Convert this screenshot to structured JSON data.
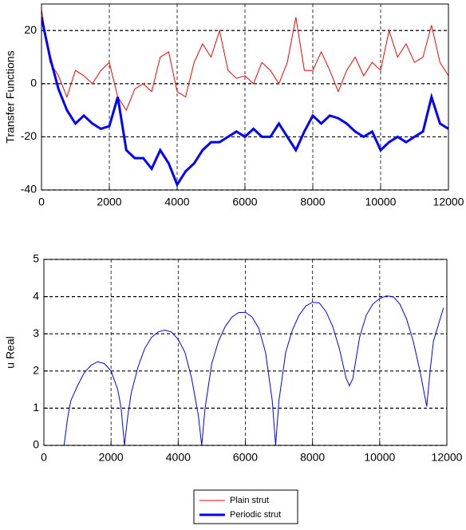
{
  "chart_data": [
    {
      "type": "line",
      "ylabel": "Transfer Functions",
      "x": [
        0,
        250,
        500,
        750,
        1000,
        1250,
        1500,
        1750,
        2000,
        2250,
        2500,
        2750,
        3000,
        3250,
        3500,
        3750,
        4000,
        4250,
        4500,
        4750,
        5000,
        5250,
        5500,
        5750,
        6000,
        6250,
        6500,
        6750,
        7000,
        7250,
        7500,
        7750,
        8000,
        8250,
        8500,
        8750,
        9000,
        9250,
        9500,
        9750,
        10000,
        10250,
        10500,
        10750,
        11000,
        11250,
        11500,
        11750,
        12000
      ],
      "series": [
        {
          "name": "Plain strut",
          "color": "#ff0000",
          "values": [
            28,
            8,
            3,
            -5,
            5,
            3,
            0,
            5,
            8,
            -5,
            -10,
            -2,
            0,
            -3,
            10,
            12,
            -3,
            -5,
            8,
            15,
            10,
            20,
            5,
            2,
            3,
            0,
            8,
            5,
            0,
            8,
            25,
            5,
            5,
            12,
            5,
            -3,
            5,
            10,
            3,
            8,
            5,
            20,
            10,
            15,
            8,
            10,
            22,
            8,
            3
          ]
        },
        {
          "name": "Periodic strut",
          "color": "#0000ff",
          "values": [
            25,
            10,
            -2,
            -10,
            -15,
            -12,
            -15,
            -17,
            -16,
            -5,
            -25,
            -28,
            -28,
            -32,
            -25,
            -30,
            -38,
            -33,
            -30,
            -25,
            -22,
            -22,
            -20,
            -18,
            -20,
            -17,
            -20,
            -20,
            -15,
            -20,
            -25,
            -18,
            -12,
            -15,
            -12,
            -13,
            -15,
            -18,
            -20,
            -18,
            -25,
            -22,
            -20,
            -22,
            -20,
            -18,
            -5,
            -15,
            -17
          ]
        }
      ],
      "xlim": [
        0,
        12000
      ],
      "xticks": [
        0,
        2000,
        4000,
        6000,
        8000,
        10000,
        12000
      ],
      "ylim": [
        -40,
        30
      ],
      "yticks": [
        -40,
        -20,
        0,
        20
      ],
      "grid": true,
      "legend": "bottom"
    },
    {
      "type": "line",
      "ylabel": "u Real",
      "x": [
        600,
        700,
        800,
        1000,
        1200,
        1400,
        1600,
        1800,
        2000,
        2200,
        2300,
        2400,
        2500,
        2600,
        2800,
        3000,
        3200,
        3400,
        3600,
        3800,
        4000,
        4200,
        4400,
        4600,
        4700,
        4800,
        5000,
        5200,
        5400,
        5600,
        5800,
        6000,
        6200,
        6400,
        6600,
        6800,
        6900,
        7000,
        7200,
        7400,
        7600,
        7800,
        8000,
        8200,
        8400,
        8600,
        8800,
        9000,
        9100,
        9200,
        9400,
        9600,
        9800,
        10000,
        10200,
        10400,
        10600,
        10800,
        11000,
        11200,
        11400,
        11500,
        11600,
        11800,
        11900
      ],
      "series": [
        {
          "color": "#0000ff",
          "values": [
            0,
            0.7,
            1.2,
            1.6,
            1.95,
            2.15,
            2.25,
            2.2,
            2.0,
            1.5,
            1.0,
            0,
            0.8,
            1.4,
            2.1,
            2.6,
            2.9,
            3.05,
            3.1,
            3.05,
            2.85,
            2.5,
            1.8,
            0.8,
            0,
            1.0,
            2.2,
            2.8,
            3.2,
            3.45,
            3.57,
            3.58,
            3.45,
            3.15,
            2.5,
            1.2,
            0,
            1.2,
            2.5,
            3.1,
            3.5,
            3.75,
            3.85,
            3.83,
            3.6,
            3.2,
            2.6,
            1.8,
            1.6,
            1.8,
            2.9,
            3.5,
            3.8,
            3.95,
            4.02,
            4.0,
            3.8,
            3.4,
            2.8,
            2.0,
            1.05,
            2.0,
            2.8,
            3.4,
            3.7
          ]
        }
      ],
      "xlim": [
        0,
        12000
      ],
      "xticks": [
        0,
        2000,
        4000,
        6000,
        8000,
        10000,
        12000
      ],
      "ylim": [
        0,
        5
      ],
      "yticks": [
        0,
        1,
        2,
        3,
        4,
        5
      ],
      "grid": true
    }
  ]
}
